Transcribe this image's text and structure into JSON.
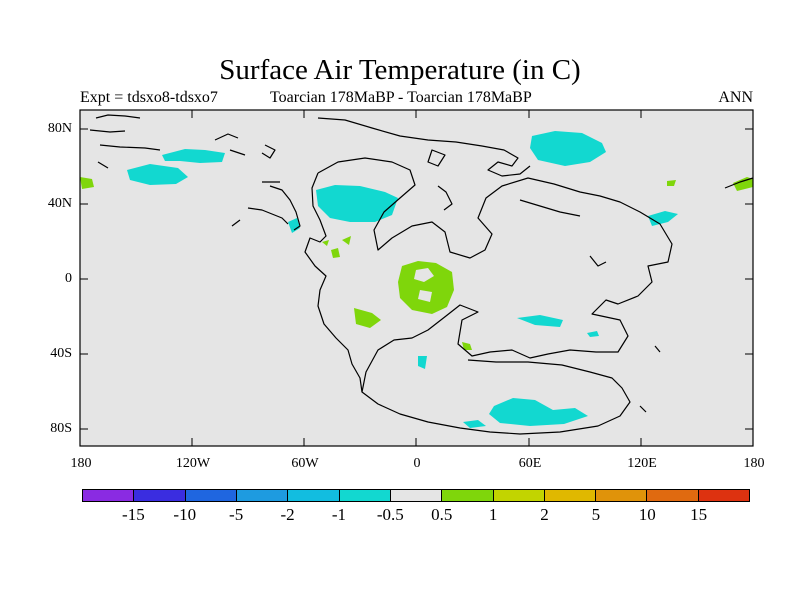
{
  "title": "Surface Air Temperature (in C)",
  "subtitle_left": "Expt = tdsxo8-tdsxo7",
  "subtitle_center": "Toarcian 178MaBP - Toarcian 178MaBP",
  "subtitle_right": "ANN",
  "lat_ticks": [
    "80N",
    "40N",
    "0",
    "40S",
    "80S"
  ],
  "lon_ticks": [
    "180",
    "120W",
    "60W",
    "0",
    "60E",
    "120E",
    "180"
  ],
  "colorbar": {
    "colors": [
      "#8a2be2",
      "#3a2de0",
      "#1f66e0",
      "#1e9be0",
      "#12bde0",
      "#12d8d0",
      "#e5e5e5",
      "#7fd60b",
      "#c2d400",
      "#e0b800",
      "#e0930a",
      "#e06a10",
      "#dd3210"
    ],
    "labels": [
      "-15",
      "-10",
      "-5",
      "-2",
      "-1",
      "-0.5",
      "0.5",
      "1",
      "2",
      "5",
      "10",
      "15"
    ]
  },
  "colors": {
    "background": "#e5e5e5",
    "cool": "#12d8d0",
    "warm": "#7fd60b",
    "coast": "#000000"
  }
}
